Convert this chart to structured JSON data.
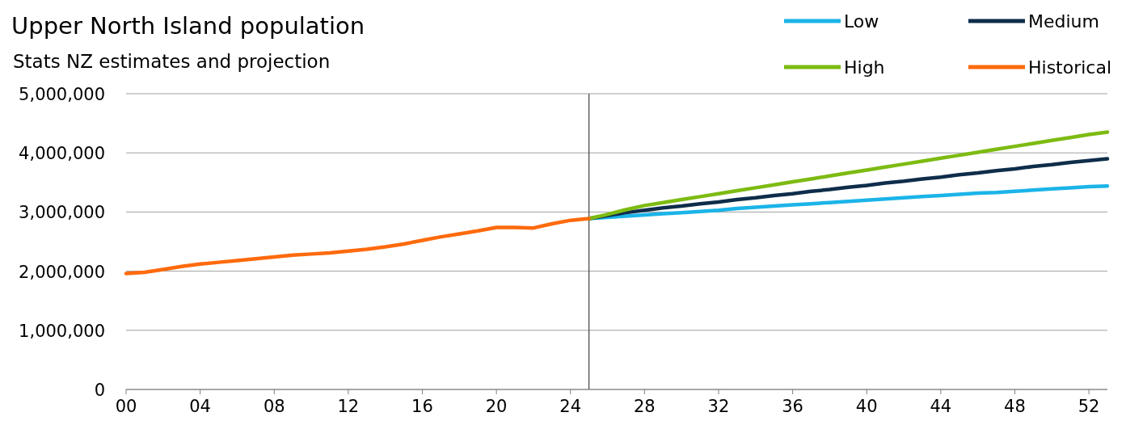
{
  "chart_data": {
    "type": "line",
    "title": "Upper North Island population",
    "subtitle": "Stats NZ estimates and projection",
    "xlim": [
      2000,
      2053
    ],
    "xticks": [
      {
        "value": 2000,
        "label": "00"
      },
      {
        "value": 2004,
        "label": "04"
      },
      {
        "value": 2008,
        "label": "08"
      },
      {
        "value": 2012,
        "label": "12"
      },
      {
        "value": 2016,
        "label": "16"
      },
      {
        "value": 2020,
        "label": "20"
      },
      {
        "value": 2024,
        "label": "24"
      },
      {
        "value": 2028,
        "label": "28"
      },
      {
        "value": 2032,
        "label": "32"
      },
      {
        "value": 2036,
        "label": "36"
      },
      {
        "value": 2040,
        "label": "40"
      },
      {
        "value": 2044,
        "label": "44"
      },
      {
        "value": 2048,
        "label": "48"
      },
      {
        "value": 2052,
        "label": "52"
      }
    ],
    "ylim": [
      0,
      5000000
    ],
    "yticks": [
      0,
      {
        "value": 1000000,
        "label": "1,000,000"
      },
      {
        "value": 2000000,
        "label": "2,000,000"
      },
      {
        "value": 3000000,
        "label": "3,000,000"
      },
      {
        "value": 4000000,
        "label": "4,000,000"
      },
      {
        "value": 5000000,
        "label": "5,000,000"
      }
    ],
    "grid": "y",
    "legend": "top right",
    "marker": "none",
    "line_style": "solid",
    "ref_lines": [
      {
        "axis": "x",
        "value": 2025,
        "color": "#404040"
      }
    ],
    "series": [
      {
        "name": "Low",
        "color": "#1bb4e8",
        "x": [
          2025,
          2026,
          2027,
          2028,
          2029,
          2030,
          2031,
          2032,
          2033,
          2034,
          2035,
          2036,
          2037,
          2038,
          2039,
          2040,
          2041,
          2042,
          2043,
          2044,
          2045,
          2046,
          2047,
          2048,
          2049,
          2050,
          2051,
          2052,
          2053
        ],
        "values": [
          2890000,
          2910000,
          2930000,
          2950000,
          2970000,
          2990000,
          3010000,
          3030000,
          3060000,
          3080000,
          3100000,
          3120000,
          3140000,
          3160000,
          3180000,
          3200000,
          3220000,
          3240000,
          3260000,
          3280000,
          3300000,
          3320000,
          3330000,
          3350000,
          3370000,
          3390000,
          3410000,
          3430000,
          3440000
        ]
      },
      {
        "name": "Medium",
        "color": "#0e2d4a",
        "x": [
          2025,
          2026,
          2027,
          2028,
          2029,
          2030,
          2031,
          2032,
          2033,
          2034,
          2035,
          2036,
          2037,
          2038,
          2039,
          2040,
          2041,
          2042,
          2043,
          2044,
          2045,
          2046,
          2047,
          2048,
          2049,
          2050,
          2051,
          2052,
          2053
        ],
        "values": [
          2890000,
          2940000,
          2990000,
          3030000,
          3070000,
          3100000,
          3140000,
          3170000,
          3210000,
          3240000,
          3280000,
          3310000,
          3350000,
          3380000,
          3420000,
          3450000,
          3490000,
          3520000,
          3560000,
          3590000,
          3630000,
          3660000,
          3700000,
          3730000,
          3770000,
          3800000,
          3840000,
          3870000,
          3900000
        ]
      },
      {
        "name": "High",
        "color": "#7dbb12",
        "x": [
          2025,
          2026,
          2027,
          2028,
          2029,
          2030,
          2031,
          2032,
          2033,
          2034,
          2035,
          2036,
          2037,
          2038,
          2039,
          2040,
          2041,
          2042,
          2043,
          2044,
          2045,
          2046,
          2047,
          2048,
          2049,
          2050,
          2051,
          2052,
          2053
        ],
        "values": [
          2890000,
          2960000,
          3040000,
          3110000,
          3160000,
          3210000,
          3260000,
          3310000,
          3360000,
          3410000,
          3460000,
          3510000,
          3560000,
          3610000,
          3660000,
          3710000,
          3760000,
          3810000,
          3860000,
          3910000,
          3960000,
          4010000,
          4060000,
          4110000,
          4160000,
          4210000,
          4260000,
          4310000,
          4350000
        ]
      },
      {
        "name": "Historical",
        "color": "#ff6a0d",
        "x": [
          2000,
          2001,
          2002,
          2003,
          2004,
          2005,
          2006,
          2007,
          2008,
          2009,
          2010,
          2011,
          2012,
          2013,
          2014,
          2015,
          2016,
          2017,
          2018,
          2019,
          2020,
          2021,
          2022,
          2023,
          2024,
          2025
        ],
        "values": [
          1960000,
          1980000,
          2030000,
          2080000,
          2120000,
          2150000,
          2180000,
          2210000,
          2240000,
          2270000,
          2290000,
          2310000,
          2340000,
          2370000,
          2410000,
          2460000,
          2520000,
          2580000,
          2630000,
          2680000,
          2740000,
          2740000,
          2730000,
          2800000,
          2860000,
          2890000
        ]
      }
    ]
  }
}
